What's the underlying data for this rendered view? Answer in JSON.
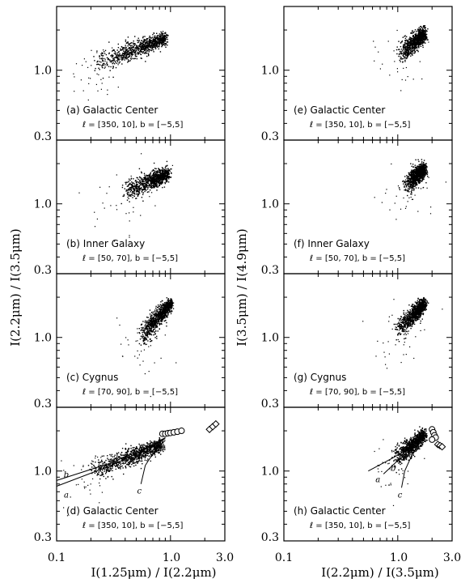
{
  "chart_data": [
    {
      "type": "scatter",
      "panel": "a",
      "label": "(a) Galactic Center",
      "region": "ℓ = [350, 10], b = [−5,5]",
      "xscale": "log",
      "yscale": "log",
      "xlim": [
        0.1,
        3.0
      ],
      "ylim": [
        0.3,
        3.0
      ],
      "cloud": [
        {
          "x": 0.22,
          "y": 1.15
        },
        {
          "x": 0.5,
          "y": 1.45
        },
        {
          "x": 0.9,
          "y": 1.75
        }
      ],
      "markers": []
    },
    {
      "type": "scatter",
      "panel": "b",
      "label": "(b) Inner Galaxy",
      "region": "ℓ = [50, 70], b = [−5,5]",
      "xscale": "log",
      "yscale": "log",
      "xlim": [
        0.1,
        3.0
      ],
      "ylim": [
        0.3,
        3.0
      ],
      "cloud": [
        {
          "x": 0.38,
          "y": 1.2
        },
        {
          "x": 0.65,
          "y": 1.5
        },
        {
          "x": 0.95,
          "y": 1.7
        }
      ],
      "markers": []
    },
    {
      "type": "scatter",
      "panel": "c",
      "label": "(c) Cygnus",
      "region": "ℓ = [70, 90], b = [−5,5]",
      "xscale": "log",
      "yscale": "log",
      "xlim": [
        0.1,
        3.0
      ],
      "ylim": [
        0.3,
        3.0
      ],
      "cloud": [
        {
          "x": 0.55,
          "y": 1.0
        },
        {
          "x": 0.75,
          "y": 1.4
        },
        {
          "x": 1.0,
          "y": 1.8
        }
      ],
      "markers": []
    },
    {
      "type": "scatter",
      "panel": "d",
      "label": "(d) Galactic Center",
      "region": "ℓ = [350, 10], b = [−5,5]",
      "xscale": "log",
      "yscale": "log",
      "xlim": [
        0.1,
        3.0
      ],
      "ylim": [
        0.3,
        3.0
      ],
      "cloud": [
        {
          "x": 0.2,
          "y": 1.0
        },
        {
          "x": 0.45,
          "y": 1.3
        },
        {
          "x": 0.85,
          "y": 1.6
        }
      ],
      "markers": [
        {
          "shape": "circle",
          "x": 0.85,
          "y": 1.9
        },
        {
          "shape": "circle",
          "x": 0.9,
          "y": 1.9
        },
        {
          "shape": "circle",
          "x": 0.95,
          "y": 1.92
        },
        {
          "shape": "circle",
          "x": 1.0,
          "y": 1.93
        },
        {
          "shape": "circle",
          "x": 1.07,
          "y": 1.95
        },
        {
          "shape": "circle",
          "x": 1.15,
          "y": 1.97
        },
        {
          "shape": "circle",
          "x": 1.25,
          "y": 2.0
        },
        {
          "shape": "diamond",
          "x": 2.2,
          "y": 2.05
        },
        {
          "shape": "diamond",
          "x": 2.35,
          "y": 2.15
        },
        {
          "shape": "diamond",
          "x": 2.5,
          "y": 2.25
        }
      ],
      "curves": [
        {
          "label": "a",
          "points": [
            {
              "x": 0.1,
              "y": 0.77
            },
            {
              "x": 0.3,
              "y": 1.1
            },
            {
              "x": 0.6,
              "y": 1.45
            },
            {
              "x": 0.9,
              "y": 1.75
            }
          ]
        },
        {
          "label": "b",
          "points": [
            {
              "x": 0.1,
              "y": 0.85
            },
            {
              "x": 0.3,
              "y": 1.15
            },
            {
              "x": 0.6,
              "y": 1.48
            },
            {
              "x": 0.9,
              "y": 1.78
            }
          ]
        },
        {
          "label": "c",
          "points": [
            {
              "x": 0.55,
              "y": 0.8
            },
            {
              "x": 0.6,
              "y": 1.1
            },
            {
              "x": 0.7,
              "y": 1.35
            },
            {
              "x": 0.9,
              "y": 1.7
            }
          ]
        }
      ]
    },
    {
      "type": "scatter",
      "panel": "e",
      "label": "(e) Galactic Center",
      "region": "ℓ = [350, 10], b = [−5,5]",
      "xscale": "log",
      "yscale": "log",
      "xlim": [
        0.1,
        3.0
      ],
      "ylim": [
        0.3,
        3.0
      ],
      "cloud": [
        {
          "x": 1.05,
          "y": 1.35
        },
        {
          "x": 1.4,
          "y": 1.65
        },
        {
          "x": 1.7,
          "y": 1.9
        }
      ],
      "markers": []
    },
    {
      "type": "scatter",
      "panel": "f",
      "label": "(f) Inner Galaxy",
      "region": "ℓ = [50, 70], b = [−5,5]",
      "xscale": "log",
      "yscale": "log",
      "xlim": [
        0.1,
        3.0
      ],
      "ylim": [
        0.3,
        3.0
      ],
      "cloud": [
        {
          "x": 1.2,
          "y": 1.4
        },
        {
          "x": 1.45,
          "y": 1.65
        },
        {
          "x": 1.7,
          "y": 1.85
        }
      ],
      "markers": []
    },
    {
      "type": "scatter",
      "panel": "g",
      "label": "(g) Cygnus",
      "region": "ℓ = [70, 90], b = [−5,5]",
      "xscale": "log",
      "yscale": "log",
      "xlim": [
        0.1,
        3.0
      ],
      "ylim": [
        0.3,
        3.0
      ],
      "cloud": [
        {
          "x": 1.0,
          "y": 1.15
        },
        {
          "x": 1.35,
          "y": 1.5
        },
        {
          "x": 1.7,
          "y": 1.8
        }
      ],
      "markers": []
    },
    {
      "type": "scatter",
      "panel": "h",
      "label": "(h) Galactic Center",
      "region": "ℓ = [350, 10], b = [−5,5]",
      "xscale": "log",
      "yscale": "log",
      "xlim": [
        0.1,
        3.0
      ],
      "ylim": [
        0.3,
        3.0
      ],
      "cloud": [
        {
          "x": 0.95,
          "y": 1.25
        },
        {
          "x": 1.3,
          "y": 1.55
        },
        {
          "x": 1.7,
          "y": 1.9
        }
      ],
      "markers": [
        {
          "shape": "circle",
          "x": 2.0,
          "y": 2.05
        },
        {
          "shape": "circle",
          "x": 2.05,
          "y": 1.95
        },
        {
          "shape": "circle",
          "x": 2.1,
          "y": 1.85
        },
        {
          "shape": "circle",
          "x": 2.15,
          "y": 1.78
        },
        {
          "shape": "circle",
          "x": 2.0,
          "y": 1.72
        },
        {
          "shape": "diamond",
          "x": 2.25,
          "y": 1.58
        },
        {
          "shape": "diamond",
          "x": 2.35,
          "y": 1.55
        },
        {
          "shape": "diamond",
          "x": 2.45,
          "y": 1.52
        }
      ],
      "curves": [
        {
          "label": "a",
          "points": [
            {
              "x": 0.55,
              "y": 1.0
            },
            {
              "x": 0.9,
              "y": 1.25
            },
            {
              "x": 1.3,
              "y": 1.5
            },
            {
              "x": 1.7,
              "y": 1.8
            }
          ]
        },
        {
          "label": "b",
          "points": [
            {
              "x": 0.75,
              "y": 0.95
            },
            {
              "x": 1.0,
              "y": 1.2
            },
            {
              "x": 1.35,
              "y": 1.5
            },
            {
              "x": 1.7,
              "y": 1.82
            }
          ]
        },
        {
          "label": "c",
          "points": [
            {
              "x": 1.08,
              "y": 0.75
            },
            {
              "x": 1.15,
              "y": 1.0
            },
            {
              "x": 1.35,
              "y": 1.35
            },
            {
              "x": 1.7,
              "y": 1.8
            }
          ]
        }
      ]
    }
  ],
  "axes": {
    "left_ylabel": "I(2.2μm) / I(3.5μm)",
    "right_ylabel": "I(3.5μm) / I(4.9μm)",
    "left_xlabel": "I(1.25μm) / I(2.2μm)",
    "right_xlabel": "I(2.2μm) / I(3.5μm)",
    "y_ticks": [
      "1.0",
      "0.3"
    ],
    "x_ticks": [
      "0.1",
      "1.0",
      "3.0"
    ]
  }
}
